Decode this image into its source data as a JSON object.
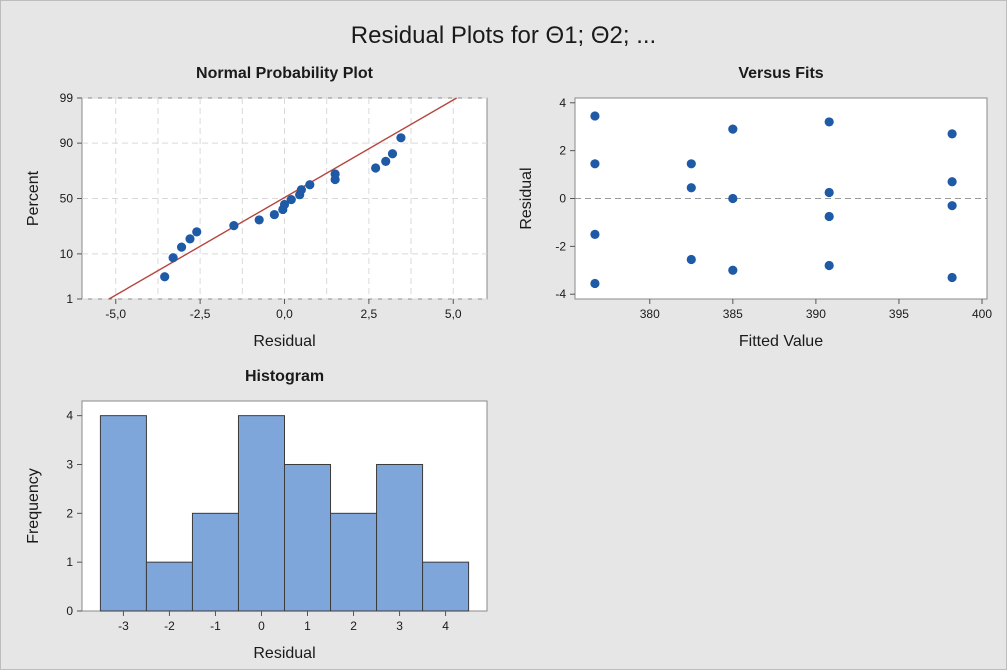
{
  "title": "Residual Plots for Θ1; Θ2; ...",
  "colors": {
    "point": "#1f5aa6",
    "fit_line": "#b5463f",
    "bar_fill": "#7ea6db",
    "bar_edge": "#3b3b3b",
    "panel_bg": "#ffffff",
    "page_bg": "#e6e6e6"
  },
  "chart_data": [
    {
      "type": "scatter",
      "title": "Normal Probability Plot",
      "xlabel": "Residual",
      "ylabel": "Percent",
      "xlim": [
        -6.0,
        6.0
      ],
      "x_ticks": [
        -5.0,
        -2.5,
        0.0,
        2.5,
        5.0
      ],
      "x_tick_labels": [
        "-5,0",
        "-2,5",
        "0,0",
        "2,5",
        "5,0"
      ],
      "y_scale": "normal-probability",
      "y_ticks": [
        1,
        10,
        50,
        90,
        99
      ],
      "y_tick_labels": [
        "1",
        "10",
        "50",
        "90",
        "99"
      ],
      "grid": true,
      "fit_line": {
        "x": [
          -5.2,
          5.1
        ],
        "y": [
          1,
          99
        ]
      },
      "points": [
        {
          "x": -3.55,
          "y": 3.5
        },
        {
          "x": -3.3,
          "y": 8.5
        },
        {
          "x": -3.05,
          "y": 13
        },
        {
          "x": -2.8,
          "y": 17.5
        },
        {
          "x": -2.6,
          "y": 22
        },
        {
          "x": -1.5,
          "y": 26.5
        },
        {
          "x": -0.75,
          "y": 31
        },
        {
          "x": -0.3,
          "y": 35.5
        },
        {
          "x": -0.05,
          "y": 40
        },
        {
          "x": 0.0,
          "y": 44.5
        },
        {
          "x": 0.2,
          "y": 49
        },
        {
          "x": 0.45,
          "y": 53.5
        },
        {
          "x": 0.5,
          "y": 58
        },
        {
          "x": 0.75,
          "y": 62.5
        },
        {
          "x": 1.5,
          "y": 67
        },
        {
          "x": 1.5,
          "y": 71.5
        },
        {
          "x": 2.7,
          "y": 76
        },
        {
          "x": 3.0,
          "y": 80.5
        },
        {
          "x": 3.2,
          "y": 85
        },
        {
          "x": 3.45,
          "y": 92
        }
      ]
    },
    {
      "type": "scatter",
      "title": "Versus Fits",
      "xlabel": "Fitted Value",
      "ylabel": "Residual",
      "xlim": [
        375.5,
        400.3
      ],
      "ylim": [
        -4.2,
        4.2
      ],
      "x_ticks": [
        380,
        385,
        390,
        395,
        400
      ],
      "y_ticks": [
        -4,
        -2,
        0,
        2,
        4
      ],
      "reference_line": 0,
      "points": [
        {
          "x": 376.7,
          "y": 3.45
        },
        {
          "x": 376.7,
          "y": 1.45
        },
        {
          "x": 376.7,
          "y": -1.5
        },
        {
          "x": 376.7,
          "y": -3.55
        },
        {
          "x": 382.5,
          "y": 1.45
        },
        {
          "x": 382.5,
          "y": 0.45
        },
        {
          "x": 382.5,
          "y": -2.55
        },
        {
          "x": 385.0,
          "y": 2.9
        },
        {
          "x": 385.0,
          "y": 0.0
        },
        {
          "x": 385.0,
          "y": -3.0
        },
        {
          "x": 390.8,
          "y": 3.2
        },
        {
          "x": 390.8,
          "y": 0.25
        },
        {
          "x": 390.8,
          "y": -0.75
        },
        {
          "x": 390.8,
          "y": -2.8
        },
        {
          "x": 398.2,
          "y": 2.7
        },
        {
          "x": 398.2,
          "y": 0.7
        },
        {
          "x": 398.2,
          "y": -0.3
        },
        {
          "x": 398.2,
          "y": -3.3
        }
      ]
    },
    {
      "type": "bar",
      "title": "Histogram",
      "xlabel": "Residual",
      "ylabel": "Frequency",
      "xlim": [
        -3.9,
        4.9
      ],
      "ylim": [
        0,
        4.3
      ],
      "x_ticks": [
        -3,
        -2,
        -1,
        0,
        1,
        2,
        3,
        4
      ],
      "y_ticks": [
        0,
        1,
        2,
        3,
        4
      ],
      "bin_width": 1,
      "bin_centers": [
        -3,
        -2,
        -1,
        0,
        1,
        2,
        3,
        4
      ],
      "values": [
        4,
        1,
        2,
        4,
        3,
        2,
        3,
        1
      ]
    }
  ]
}
